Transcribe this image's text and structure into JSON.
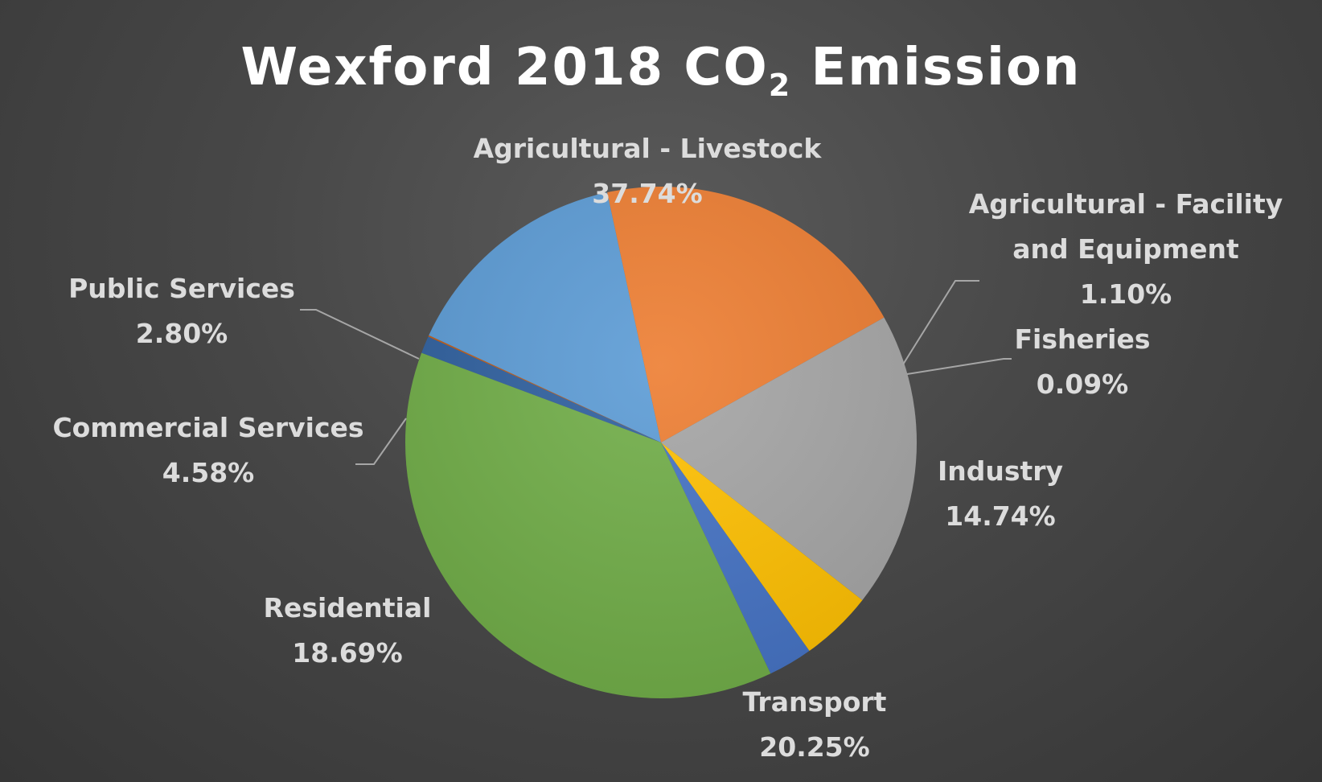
{
  "chart_data": {
    "type": "pie",
    "title": {
      "main": "Wexford 2018 CO",
      "subscript": "2",
      "suffix": " Emission"
    },
    "value_format": "percent",
    "slices": [
      {
        "label": [
          "Agricultural - Facility",
          "and Equipment"
        ],
        "value": "1.10%",
        "percent": 1.1,
        "color": "#2e5f9e",
        "leader": true
      },
      {
        "label": [
          "Fisheries"
        ],
        "value": "0.09%",
        "percent": 0.09,
        "color": "#c55a11",
        "leader": true
      },
      {
        "label": [
          "Industry"
        ],
        "value": "14.74%",
        "percent": 14.74,
        "color": "#5b9bd5",
        "leader": false
      },
      {
        "label": [
          "Transport"
        ],
        "value": "20.25%",
        "percent": 20.25,
        "color": "#ed7d31",
        "leader": false
      },
      {
        "label": [
          "Residential"
        ],
        "value": "18.69%",
        "percent": 18.69,
        "color": "#a5a5a5",
        "leader": false
      },
      {
        "label": [
          "Commercial Services"
        ],
        "value": "4.58%",
        "percent": 4.58,
        "color": "#ffc000",
        "leader": true
      },
      {
        "label": [
          "Public Services"
        ],
        "value": "2.80%",
        "percent": 2.8,
        "color": "#4472c4",
        "leader": true
      },
      {
        "label": [
          "Agricultural - Livestock"
        ],
        "value": "37.74%",
        "percent": 37.74,
        "color": "#70ad47",
        "leader": false
      }
    ]
  }
}
